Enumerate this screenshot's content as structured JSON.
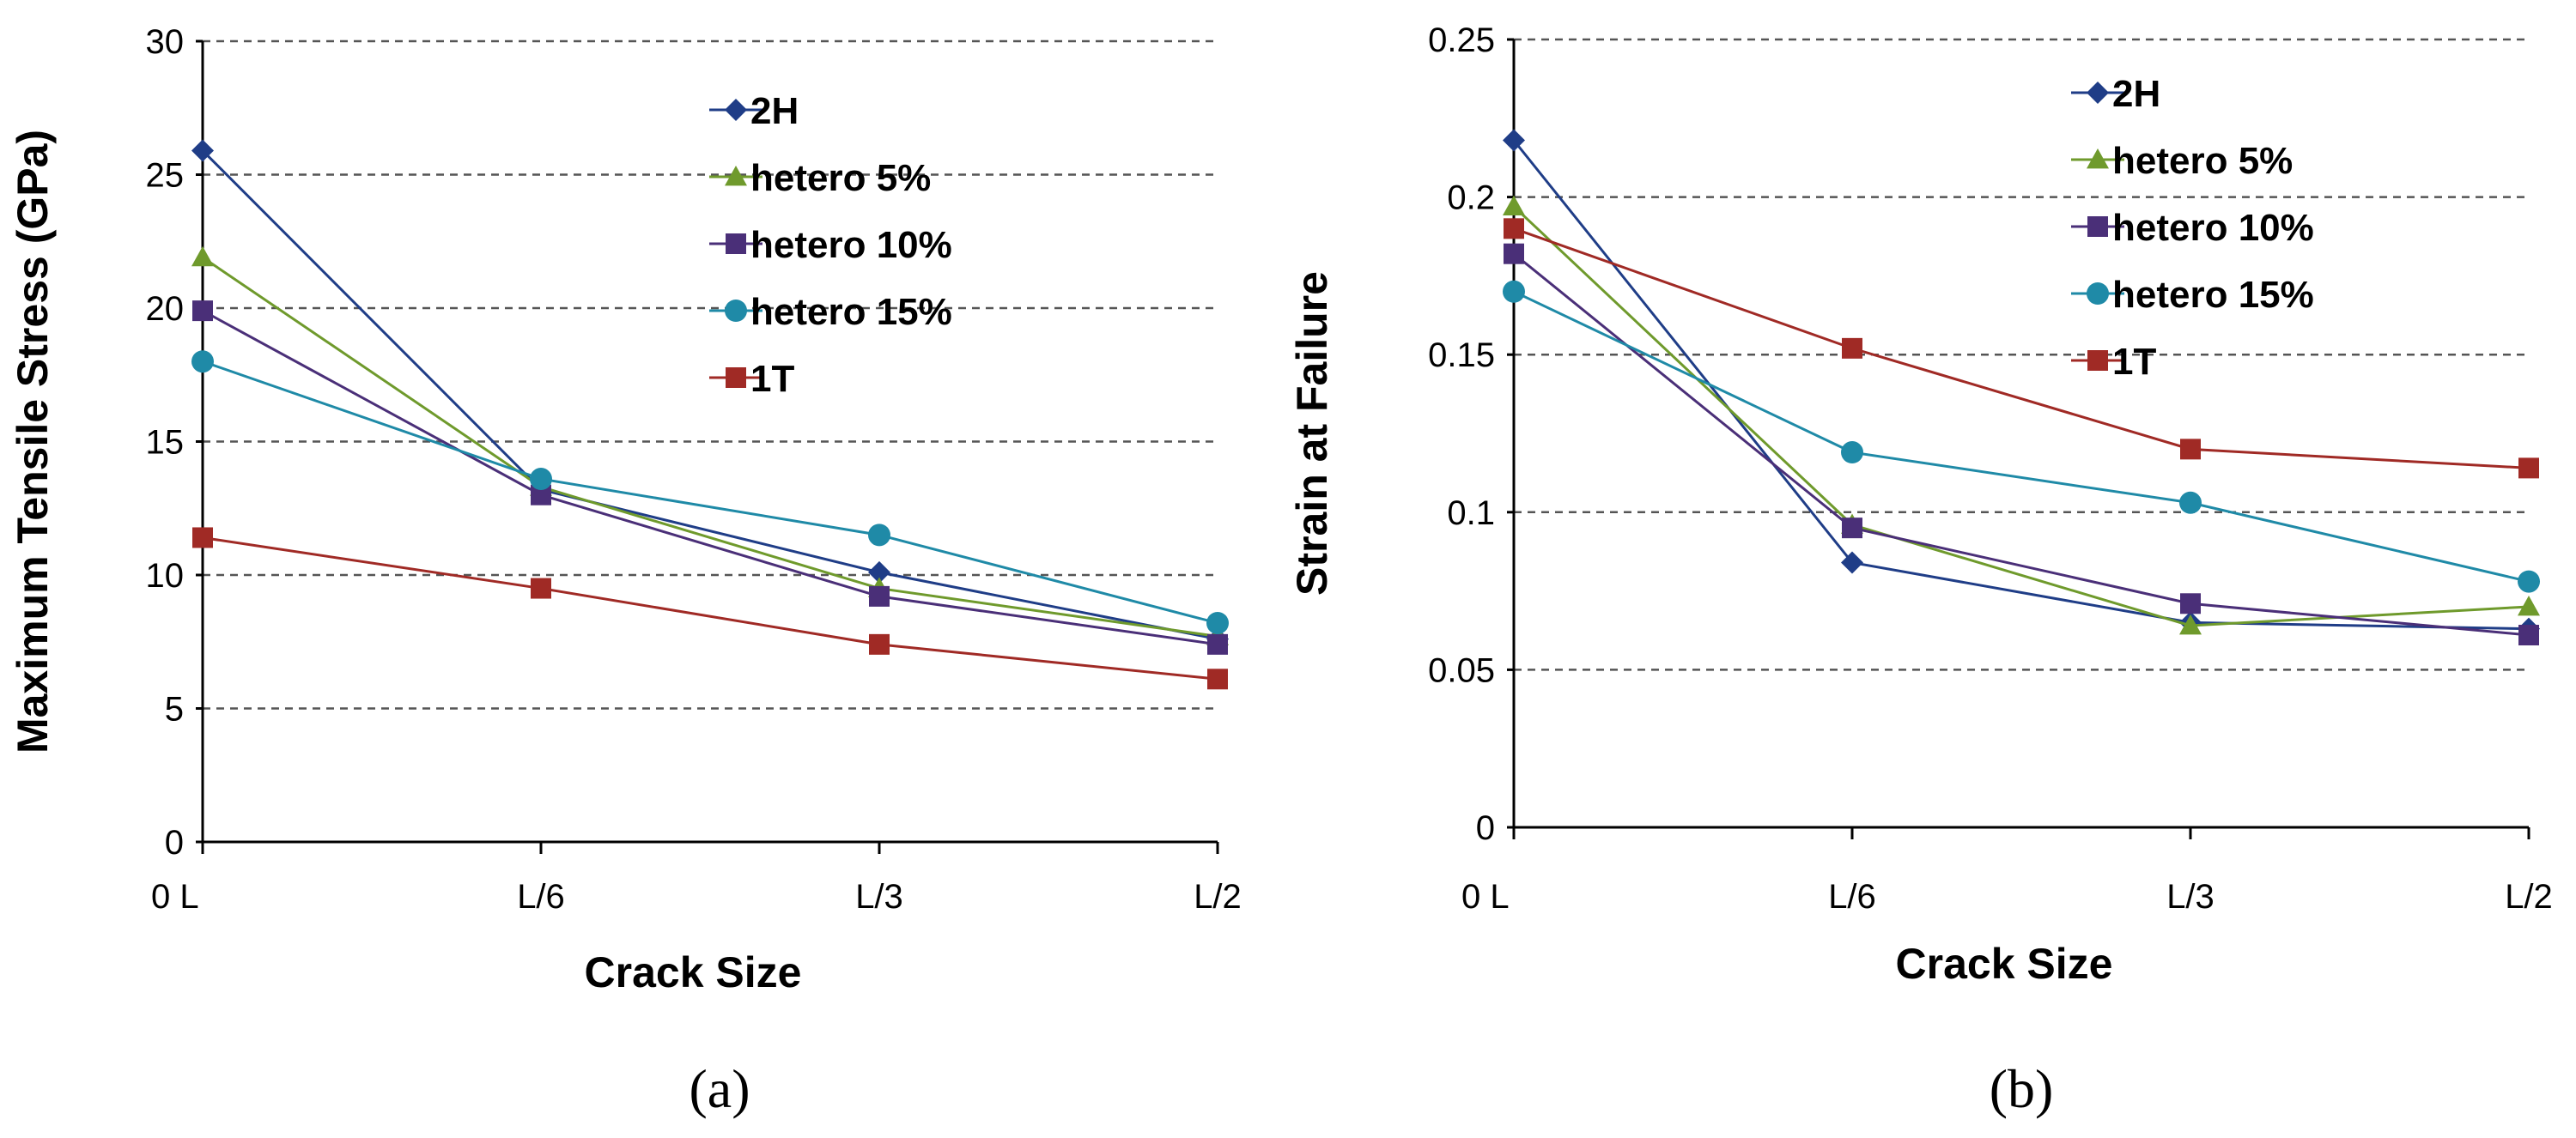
{
  "chart_data": [
    {
      "type": "line",
      "panel_label": "(a)",
      "xlabel": "Crack Size",
      "ylabel": "Maximum Tensile Stress (GPa)",
      "categories": [
        "0 L",
        "L/6",
        "L/3",
        "L/2"
      ],
      "ylim": [
        0,
        30
      ],
      "yticks": [
        "0",
        "5",
        "10",
        "15",
        "20",
        "25",
        "30"
      ],
      "grid": "horizontal dashed",
      "legend_position": "top-right",
      "series": [
        {
          "name": "2H",
          "color": "#1f3d87",
          "marker": "diamond",
          "values": [
            25.9,
            13.2,
            10.1,
            7.6
          ]
        },
        {
          "name": "hetero 5%",
          "color": "#6f9a2c",
          "marker": "triangle",
          "values": [
            21.9,
            13.3,
            9.5,
            7.7
          ]
        },
        {
          "name": "hetero 10%",
          "color": "#4a2f78",
          "marker": "square",
          "values": [
            19.9,
            13.0,
            9.2,
            7.4
          ]
        },
        {
          "name": "hetero 15%",
          "color": "#1f8aa7",
          "marker": "circle",
          "values": [
            18.0,
            13.6,
            11.5,
            8.2
          ]
        },
        {
          "name": "1T",
          "color": "#a02a25",
          "marker": "square",
          "values": [
            11.4,
            9.5,
            7.4,
            6.1
          ]
        }
      ]
    },
    {
      "type": "line",
      "panel_label": "(b)",
      "xlabel": "Crack Size",
      "ylabel": "Strain at Failure",
      "categories": [
        "0 L",
        "L/6",
        "L/3",
        "L/2"
      ],
      "ylim": [
        0,
        0.25
      ],
      "yticks": [
        "0",
        "0.05",
        "0.1",
        "0.15",
        "0.2",
        "0.25"
      ],
      "grid": "horizontal dashed",
      "legend_position": "top-right",
      "series": [
        {
          "name": "2H",
          "color": "#1f3d87",
          "marker": "diamond",
          "values": [
            0.218,
            0.084,
            0.065,
            0.063
          ]
        },
        {
          "name": "hetero 5%",
          "color": "#6f9a2c",
          "marker": "triangle",
          "values": [
            0.197,
            0.096,
            0.064,
            0.07
          ]
        },
        {
          "name": "hetero 10%",
          "color": "#4a2f78",
          "marker": "square",
          "values": [
            0.182,
            0.095,
            0.071,
            0.061
          ]
        },
        {
          "name": "hetero 15%",
          "color": "#1f8aa7",
          "marker": "circle",
          "values": [
            0.17,
            0.119,
            0.103,
            0.078
          ]
        },
        {
          "name": "1T",
          "color": "#a02a25",
          "marker": "square",
          "values": [
            0.19,
            0.152,
            0.12,
            0.114
          ]
        }
      ]
    }
  ]
}
